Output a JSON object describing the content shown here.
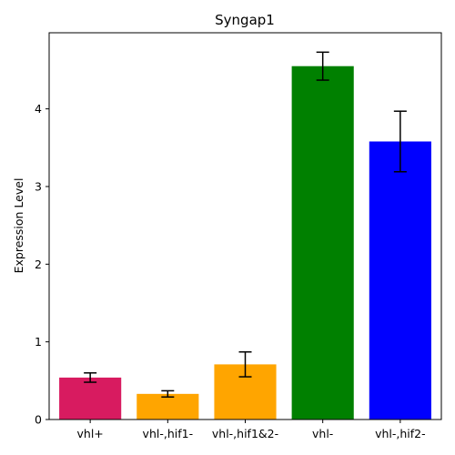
{
  "chart_data": {
    "type": "bar",
    "title": "Syngap1",
    "xlabel": "",
    "ylabel": "Expression Level",
    "categories": [
      "vhl+",
      "vhl-,hif1-",
      "vhl-,hif1&2-",
      "vhl-",
      "vhl-,hif2-"
    ],
    "values": [
      0.54,
      0.33,
      0.71,
      4.55,
      3.58
    ],
    "errors": [
      0.06,
      0.04,
      0.16,
      0.18,
      0.39
    ],
    "colors": [
      "#d81b60",
      "#ffa500",
      "#ffa500",
      "#008000",
      "#0000ff"
    ],
    "ylim": [
      0,
      4.98
    ],
    "yticks": [
      0,
      1,
      2,
      3,
      4
    ],
    "grid": false,
    "legend": "none"
  }
}
